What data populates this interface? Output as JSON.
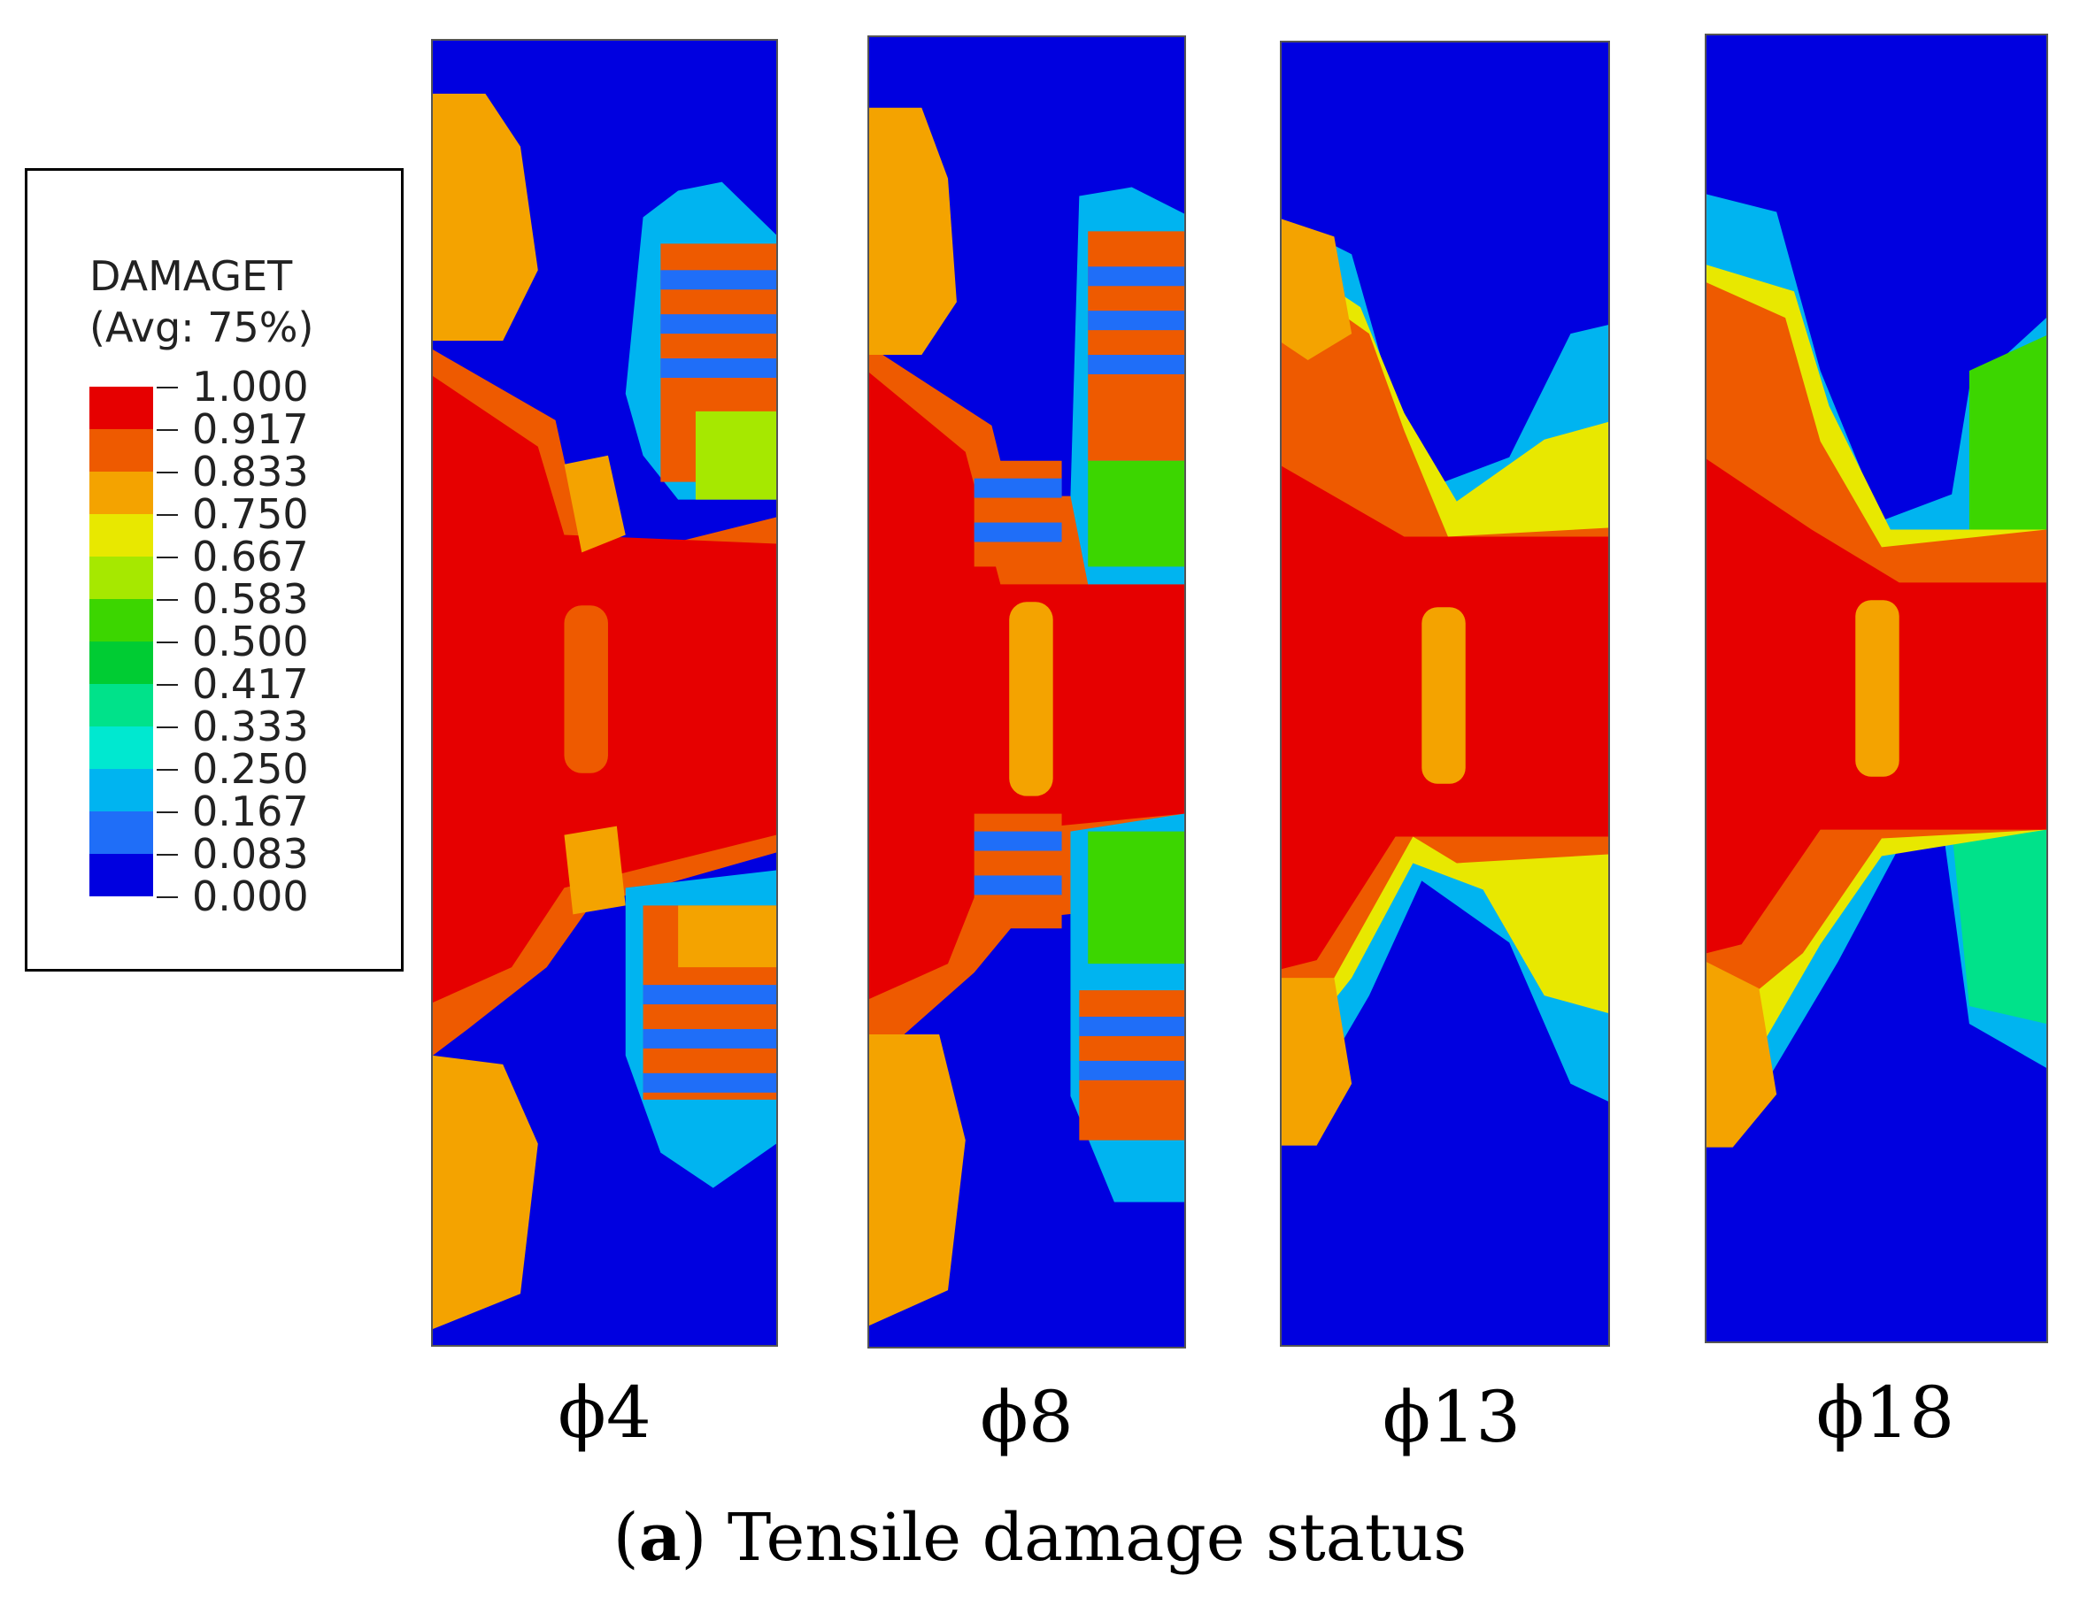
{
  "legend": {
    "variable": "DAMAGET",
    "averaging": "(Avg: 75%)",
    "labels": [
      "1.000",
      "0.917",
      "0.833",
      "0.750",
      "0.667",
      "0.583",
      "0.500",
      "0.417",
      "0.333",
      "0.250",
      "0.167",
      "0.083",
      "0.000"
    ],
    "colors": [
      "#e60000",
      "#ee5a00",
      "#f4a300",
      "#e8e800",
      "#a6e800",
      "#3cd600",
      "#00cc33",
      "#00e28a",
      "#00e8d0",
      "#00b4f0",
      "#1f6ef8",
      "#0000e0"
    ]
  },
  "panels": [
    {
      "label": "ϕ4"
    },
    {
      "label": "ϕ8"
    },
    {
      "label": "ϕ13"
    },
    {
      "label": "ϕ18"
    }
  ],
  "caption": {
    "tag": "a",
    "open": "(",
    "close": ")",
    "text": " Tensile damage status"
  }
}
